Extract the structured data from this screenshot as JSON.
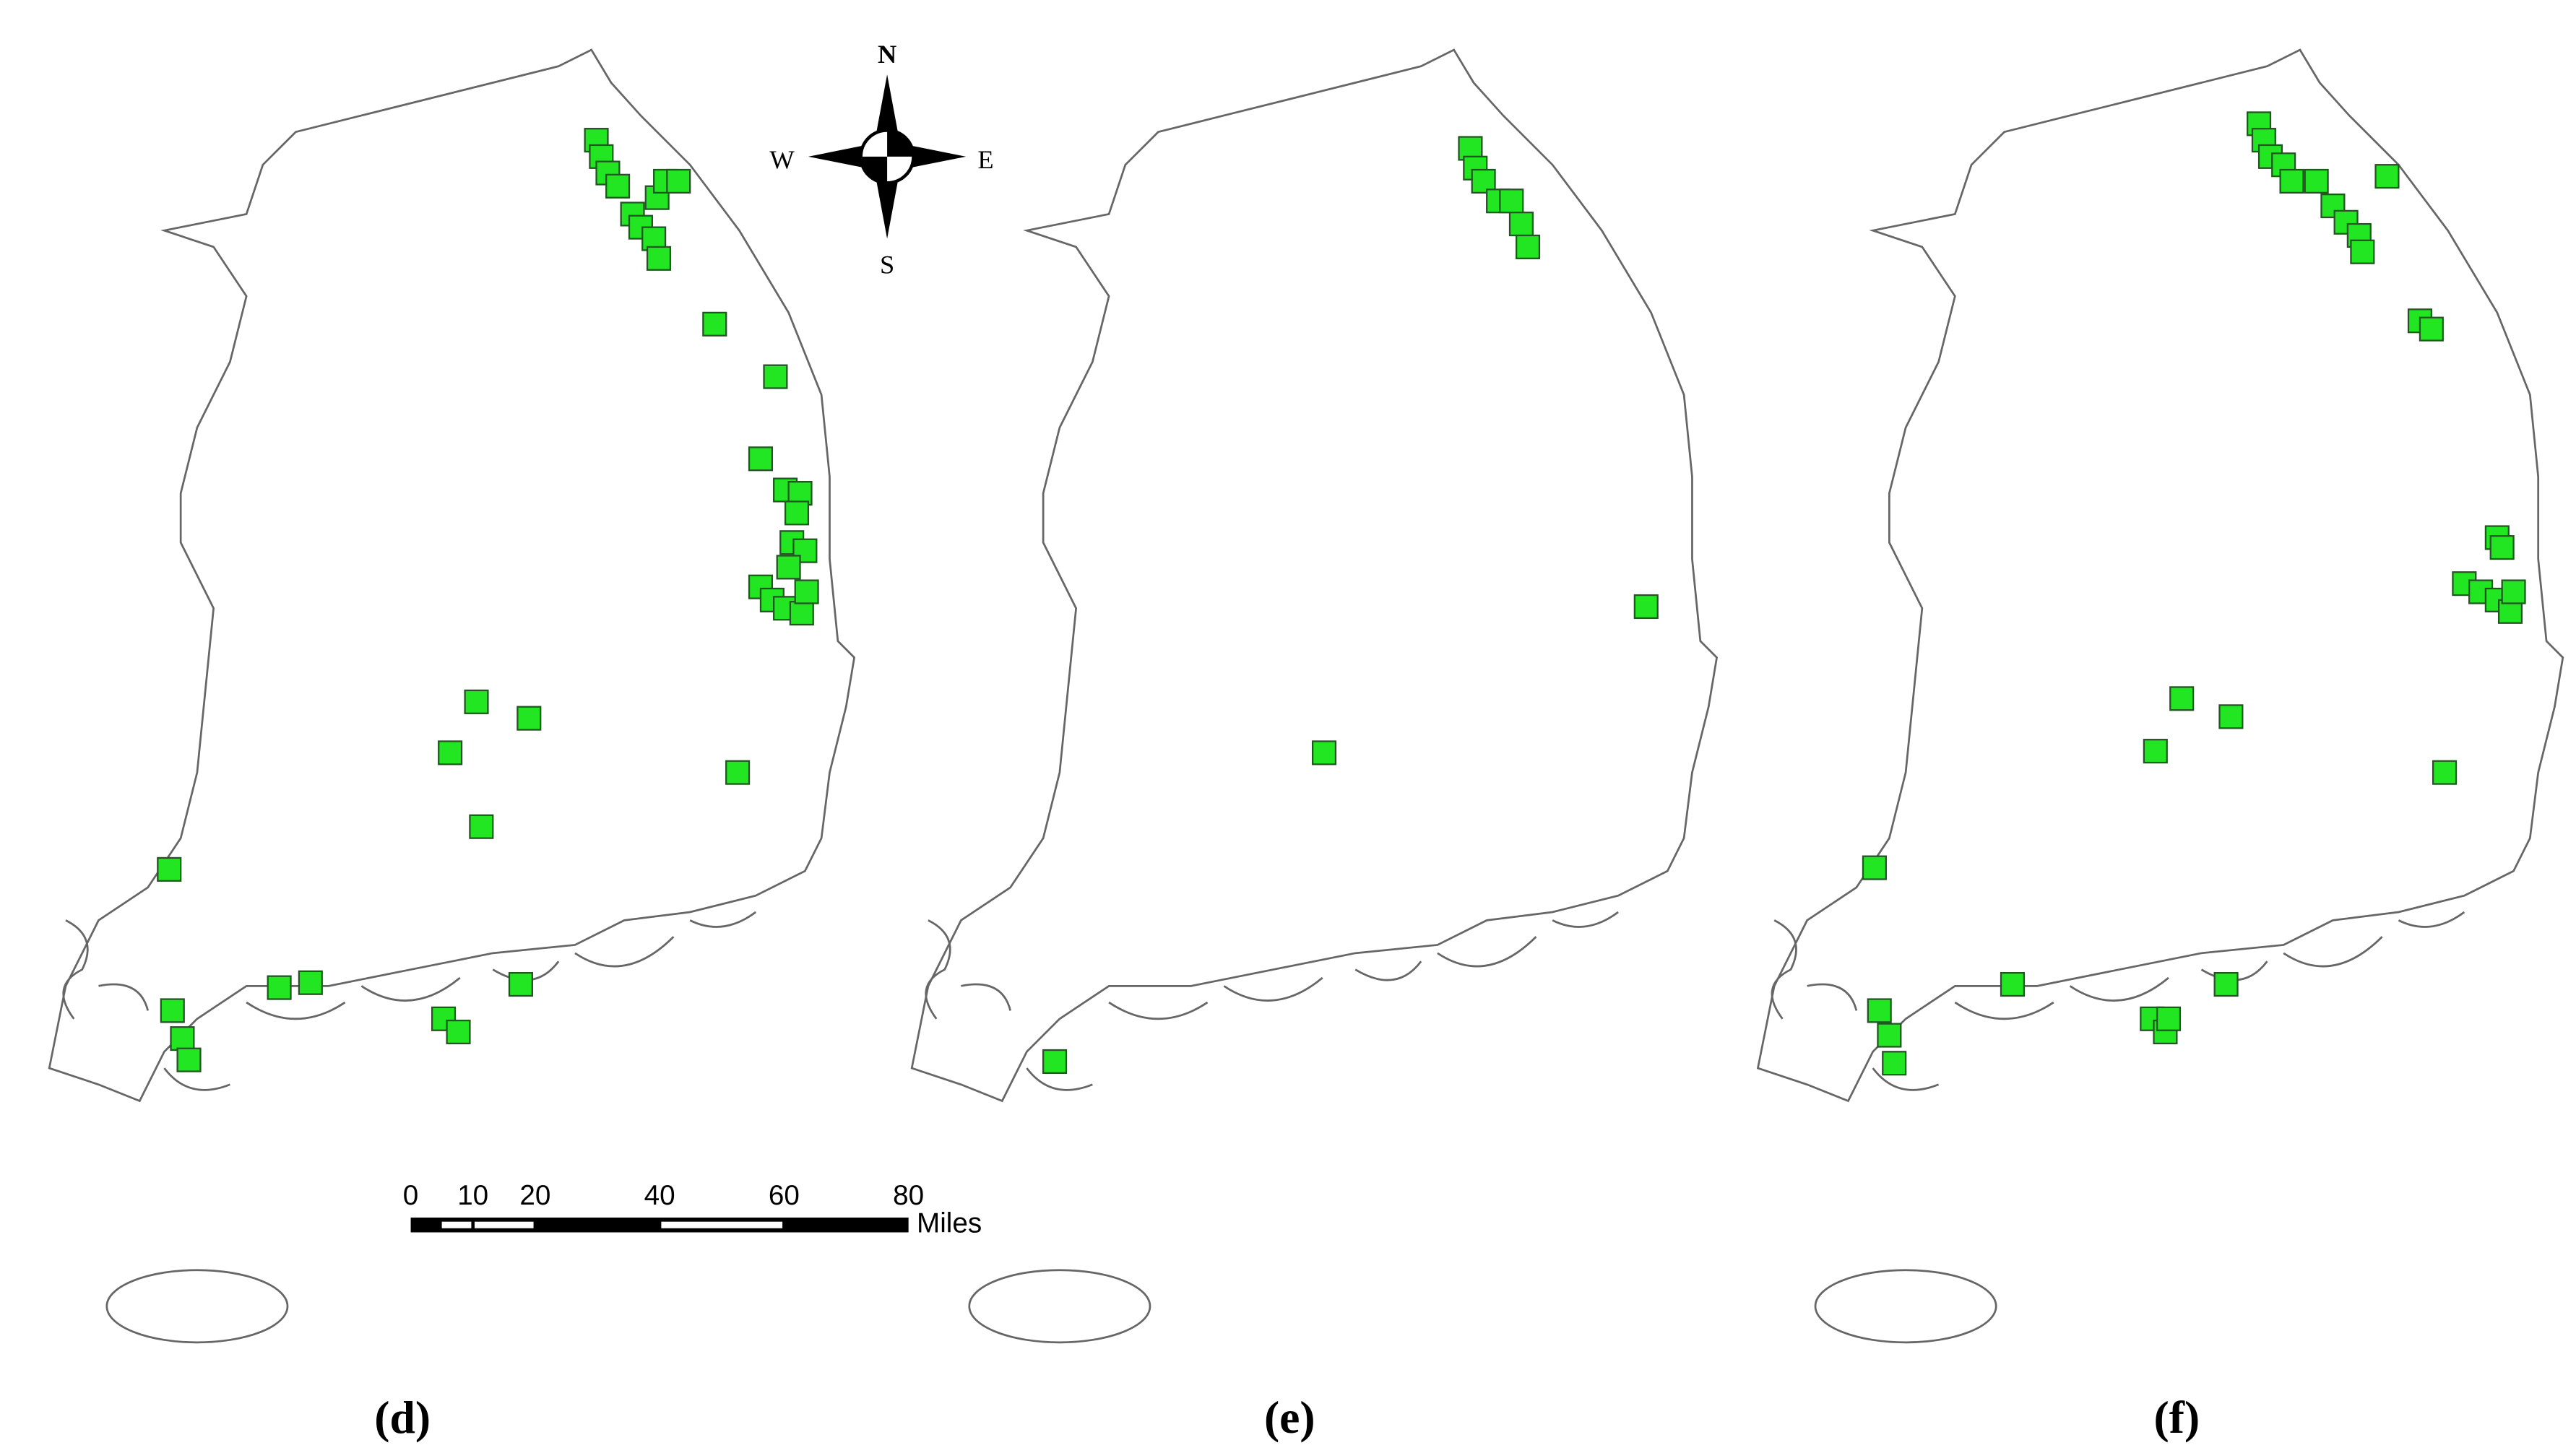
{
  "compass": {
    "north": "N",
    "south": "S",
    "west": "W",
    "east": "E"
  },
  "scale_bar": {
    "ticks": [
      0,
      10,
      20,
      40,
      60,
      80
    ],
    "unit": "Miles"
  },
  "panels": [
    {
      "label": "(d)"
    },
    {
      "label": "(e)"
    },
    {
      "label": "(f)"
    }
  ]
}
